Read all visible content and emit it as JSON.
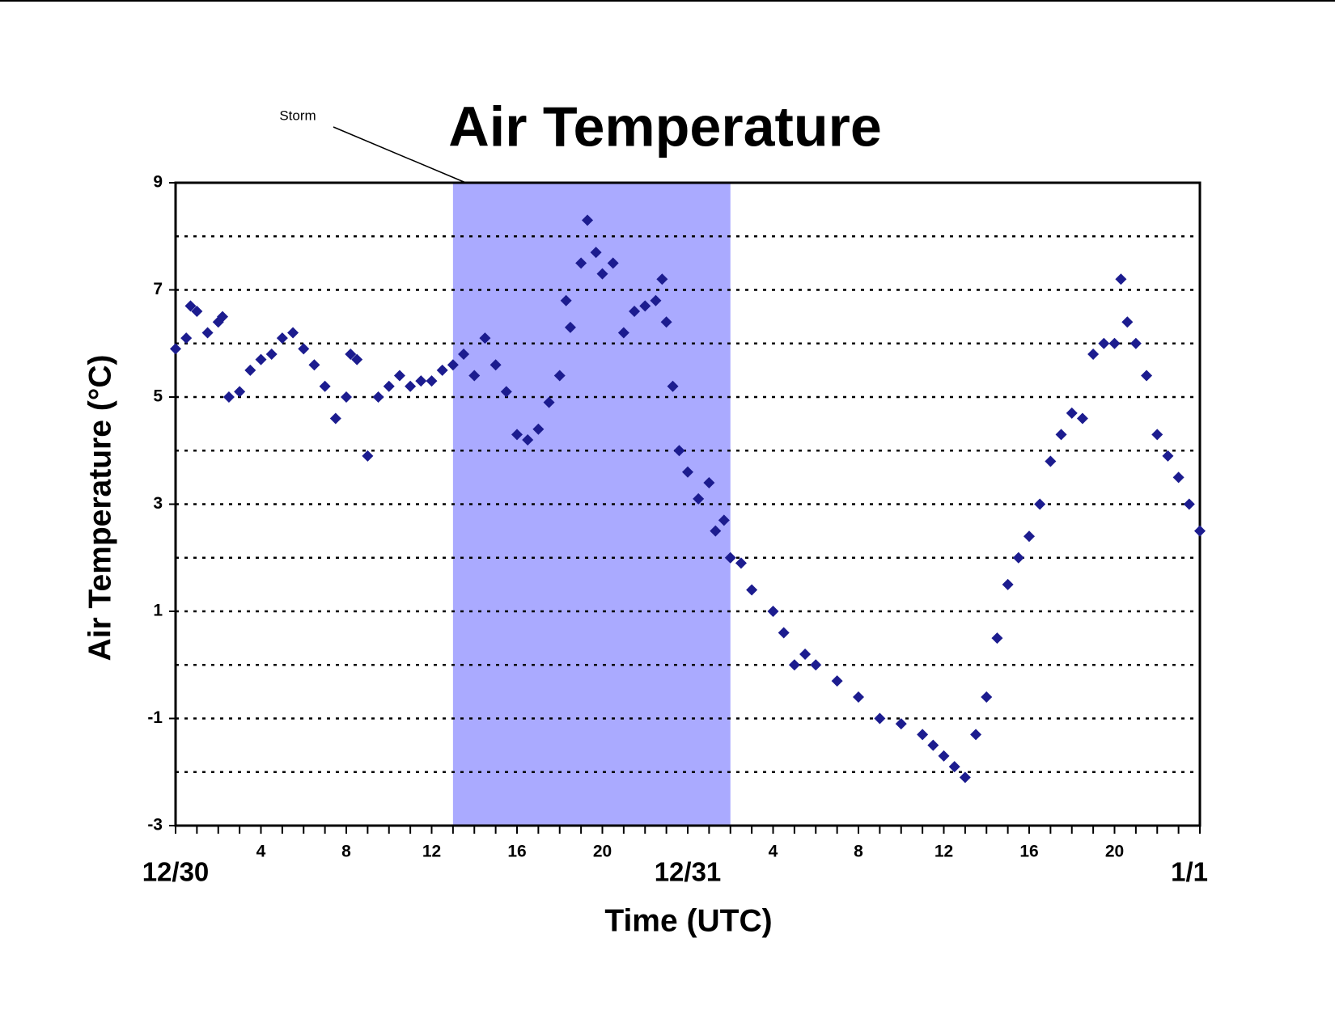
{
  "chart_data": {
    "type": "scatter",
    "title": "Air Temperature",
    "x_label": "Time (UTC)",
    "y_label": "Air Temperature (°C)",
    "annotation": {
      "text": "Storm",
      "x": 13.6
    },
    "shaded_region": {
      "x": [
        13,
        26
      ],
      "color": "#aaaaff"
    },
    "color": "#1c1c8f",
    "x": [
      0,
      0.5,
      0.7,
      1,
      1.5,
      2,
      2.2,
      2.5,
      3,
      3.5,
      4,
      4.5,
      5,
      5.5,
      6,
      6.5,
      7,
      7.5,
      8,
      8.2,
      8.5,
      9,
      9.5,
      10,
      10.5,
      11,
      11.5,
      12,
      12.5,
      13,
      13.5,
      14,
      14.5,
      15,
      15.5,
      16,
      16.5,
      17,
      17.5,
      18,
      18.3,
      18.5,
      19,
      19.3,
      19.7,
      20,
      20.5,
      21,
      21.5,
      22,
      22.5,
      22.8,
      23,
      23.3,
      23.6,
      24,
      24.5,
      25,
      25.3,
      25.7,
      26,
      26.5,
      27,
      28,
      28.5,
      29,
      29.5,
      30,
      31,
      32,
      33,
      34,
      35,
      35.5,
      36,
      36.5,
      37,
      37.5,
      38,
      38.5,
      39,
      39.5,
      40,
      40.5,
      41,
      41.5,
      42,
      42.5,
      43,
      43.5,
      44,
      44.3,
      44.6,
      45,
      45.5,
      46,
      46.5,
      47,
      47.5,
      48
    ],
    "values": [
      5.9,
      6.1,
      6.7,
      6.6,
      6.2,
      6.4,
      6.5,
      5.0,
      5.1,
      5.5,
      5.7,
      5.8,
      6.1,
      6.2,
      5.9,
      5.6,
      5.2,
      4.6,
      5.0,
      5.8,
      5.7,
      3.9,
      5.0,
      5.2,
      5.4,
      5.2,
      5.3,
      5.3,
      5.5,
      5.6,
      5.8,
      5.4,
      6.1,
      5.6,
      5.1,
      4.3,
      4.2,
      4.4,
      4.9,
      5.4,
      6.8,
      6.3,
      7.5,
      8.3,
      7.7,
      7.3,
      7.5,
      6.2,
      6.6,
      6.7,
      6.8,
      7.2,
      6.4,
      5.2,
      4.0,
      3.6,
      3.1,
      3.4,
      2.5,
      2.7,
      2.0,
      1.9,
      1.4,
      1.0,
      0.6,
      0.0,
      0.2,
      0.0,
      -0.3,
      -0.6,
      -1.0,
      -1.1,
      -1.3,
      -1.5,
      -1.7,
      -1.9,
      -2.1,
      -1.3,
      -0.6,
      0.5,
      1.5,
      2.0,
      2.4,
      3.0,
      3.8,
      4.3,
      4.7,
      4.6,
      5.8,
      6.0,
      6.0,
      7.2,
      6.4,
      6.0,
      5.4,
      4.3,
      3.9,
      3.5,
      3.0,
      2.5
    ],
    "xlim": [
      0,
      48
    ],
    "ylim": [
      -3,
      9
    ],
    "yticks": [
      -3,
      -1,
      1,
      3,
      5,
      7,
      9
    ],
    "grid_lines": [
      -2,
      -1,
      0,
      1,
      2,
      3,
      4,
      5,
      6,
      7,
      8
    ],
    "xticks": [
      4,
      8,
      12,
      16,
      20,
      {
        "value": 28,
        "label": "4"
      },
      {
        "value": 32,
        "label": "8"
      },
      {
        "value": 36,
        "label": "12"
      },
      {
        "value": 40,
        "label": "16"
      },
      {
        "value": 44,
        "label": "20"
      }
    ],
    "date_ticks": [
      {
        "value": 0,
        "label": "12/30"
      },
      {
        "value": 24,
        "label": "12/31"
      },
      {
        "value": 48,
        "label": "1/1"
      }
    ],
    "minor_xticks": [
      0,
      1,
      2,
      3,
      4,
      5,
      6,
      7,
      8,
      9,
      10,
      11,
      12,
      13,
      14,
      15,
      16,
      17,
      18,
      19,
      20,
      21,
      22,
      23,
      24,
      25,
      26,
      27,
      28,
      29,
      30,
      31,
      32,
      33,
      34,
      35,
      36,
      37,
      38,
      39,
      40,
      41,
      42,
      43,
      44,
      45,
      46,
      47,
      48
    ]
  }
}
